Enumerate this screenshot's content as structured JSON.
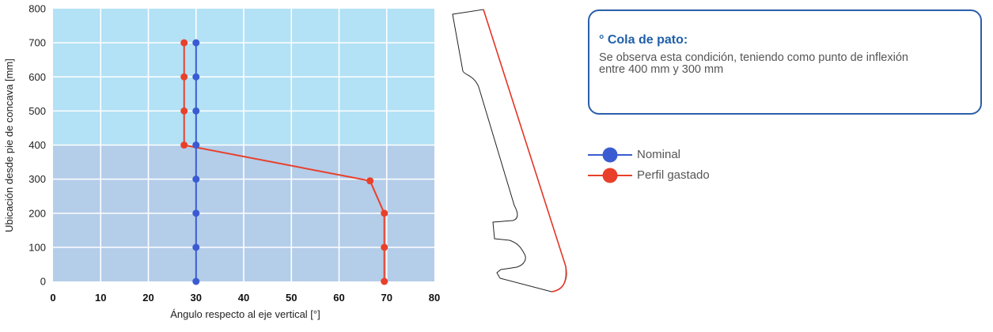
{
  "chart_data": {
    "type": "line",
    "xlabel": "Ángulo respecto al eje vertical [°]",
    "ylabel": "Ubicación desde pie de concava [mm]",
    "xlim": [
      0,
      80
    ],
    "ylim": [
      0,
      800
    ],
    "xticks": [
      0,
      10,
      20,
      30,
      40,
      50,
      60,
      70,
      80
    ],
    "yticks": [
      0,
      100,
      200,
      300,
      400,
      500,
      600,
      700,
      800
    ],
    "grid": true,
    "background_bands": [
      {
        "from": 400,
        "to": 800,
        "color": "#b3e1f5"
      },
      {
        "from": 0,
        "to": 400,
        "color": "#b4cde9"
      }
    ],
    "series": [
      {
        "name": "Nominal",
        "color": "#3a5bd1",
        "points": [
          [
            30,
            0
          ],
          [
            30,
            100
          ],
          [
            30,
            200
          ],
          [
            30,
            300
          ],
          [
            30,
            400
          ],
          [
            30,
            500
          ],
          [
            30,
            600
          ],
          [
            30,
            700
          ]
        ]
      },
      {
        "name": "Perfil gastado",
        "color": "#e8402a",
        "points": [
          [
            69.5,
            0
          ],
          [
            69.5,
            100
          ],
          [
            69.5,
            200
          ],
          [
            66.5,
            295
          ],
          [
            27.5,
            400
          ],
          [
            27.5,
            500
          ],
          [
            27.5,
            600
          ],
          [
            27.5,
            700
          ]
        ]
      }
    ]
  },
  "note": {
    "title": "° Cola de pato:",
    "text": "Se observa esta condición, teniendo como punto de inflexión entre 400 mm y 300 mm"
  },
  "legend": [
    {
      "label": "Nominal",
      "color": "#3a5bd1"
    },
    {
      "label": "Perfil gastado",
      "color": "#e8402a"
    }
  ]
}
